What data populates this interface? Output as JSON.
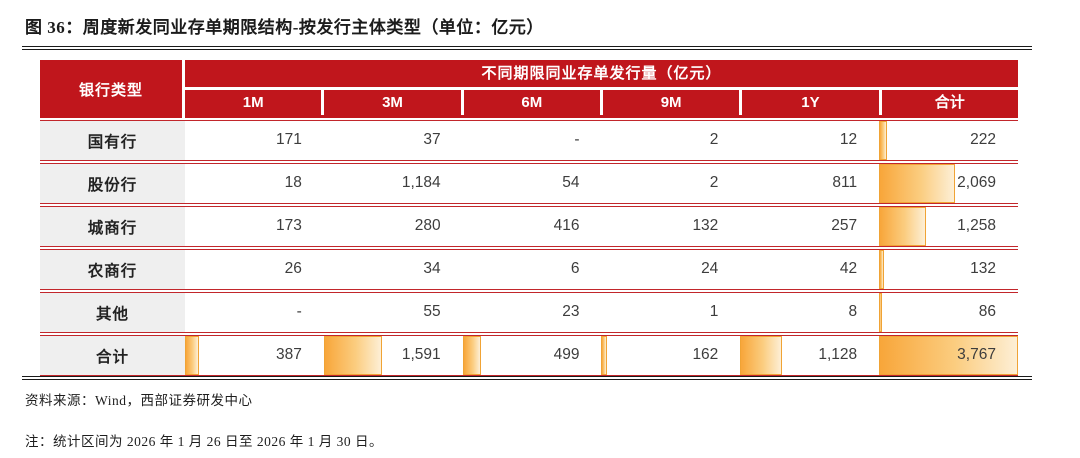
{
  "title": "图 36：周度新发同业存单期限结构-按发行主体类型（单位：亿元）",
  "table": {
    "corner_header": "银行类型",
    "span_header": "不同期限同业存单发行量（亿元）",
    "columns": [
      "1M",
      "3M",
      "6M",
      "9M",
      "1Y",
      "合计"
    ],
    "bar_max": 3767,
    "rows": [
      {
        "label": "国有行",
        "cells": [
          "171",
          "37",
          "-",
          "2",
          "12",
          "222"
        ],
        "bars": [
          null,
          null,
          null,
          null,
          null,
          222
        ]
      },
      {
        "label": "股份行",
        "cells": [
          "18",
          "1,184",
          "54",
          "2",
          "811",
          "2,069"
        ],
        "bars": [
          null,
          null,
          null,
          null,
          null,
          2069
        ]
      },
      {
        "label": "城商行",
        "cells": [
          "173",
          "280",
          "416",
          "132",
          "257",
          "1,258"
        ],
        "bars": [
          null,
          null,
          null,
          null,
          null,
          1258
        ]
      },
      {
        "label": "农商行",
        "cells": [
          "26",
          "34",
          "6",
          "24",
          "42",
          "132"
        ],
        "bars": [
          null,
          null,
          null,
          null,
          null,
          132
        ]
      },
      {
        "label": "其他",
        "cells": [
          "-",
          "55",
          "23",
          "1",
          "8",
          "86"
        ],
        "bars": [
          null,
          null,
          null,
          null,
          null,
          86
        ]
      },
      {
        "label": "合计",
        "cells": [
          "387",
          "1,591",
          "499",
          "162",
          "1,128",
          "3,767"
        ],
        "bars": [
          387,
          1591,
          499,
          162,
          1128,
          3767
        ]
      }
    ]
  },
  "footer": {
    "source": "资料来源：Wind，西部证券研发中心",
    "note": "注：统计区间为 2026 年 1 月 26 日至 2026 年 1 月 30 日。"
  },
  "colors": {
    "header_red": "#C0161C",
    "line_red": "#C2262B",
    "bar_orange": "#F8A63A",
    "bar_border": "#F0A335",
    "label_bg": "#EFEFEF"
  }
}
